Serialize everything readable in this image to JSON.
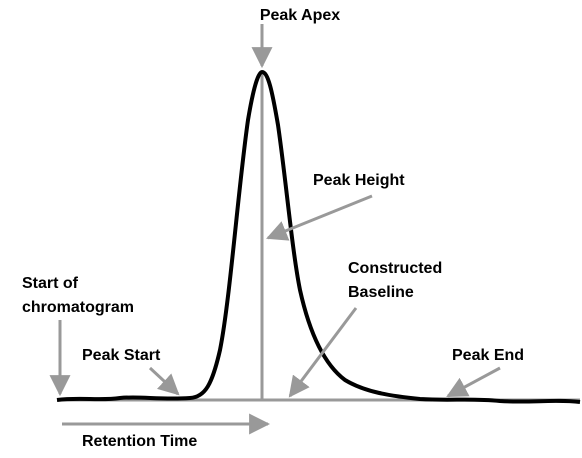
{
  "labels": {
    "peak_apex": "Peak Apex",
    "peak_height": "Peak Height",
    "constructed_baseline": [
      "Constructed",
      "Baseline"
    ],
    "start_of_chromatogram": [
      "Start of",
      "chromatogram"
    ],
    "peak_start": "Peak Start",
    "peak_end": "Peak End",
    "retention_time": "Retention Time"
  }
}
